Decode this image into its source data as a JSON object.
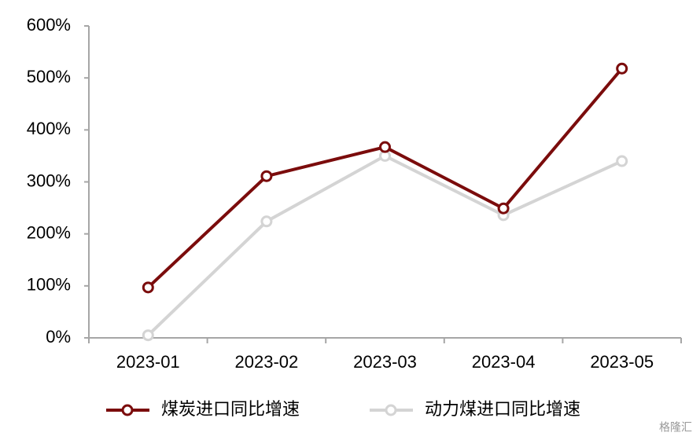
{
  "chart_data": {
    "type": "line",
    "categories": [
      "2023-01",
      "2023-02",
      "2023-03",
      "2023-04",
      "2023-05"
    ],
    "series": [
      {
        "name": "煤炭进口同比增速",
        "color": "#7b0c0c",
        "values": [
          97,
          311,
          367,
          249,
          518
        ]
      },
      {
        "name": "动力煤进口同比增速",
        "color": "#d4d4d4",
        "values": [
          5,
          224,
          350,
          236,
          340
        ]
      }
    ],
    "ylim": [
      0,
      600
    ],
    "yticks": [
      {
        "value": 0,
        "label": "0%"
      },
      {
        "value": 100,
        "label": "100%"
      },
      {
        "value": 200,
        "label": "200%"
      },
      {
        "value": 300,
        "label": "300%"
      },
      {
        "value": 400,
        "label": "400%"
      },
      {
        "value": 500,
        "label": "500%"
      },
      {
        "value": 600,
        "label": "600%"
      }
    ],
    "grid": false,
    "legend": "bottom",
    "watermark": "格隆汇"
  }
}
